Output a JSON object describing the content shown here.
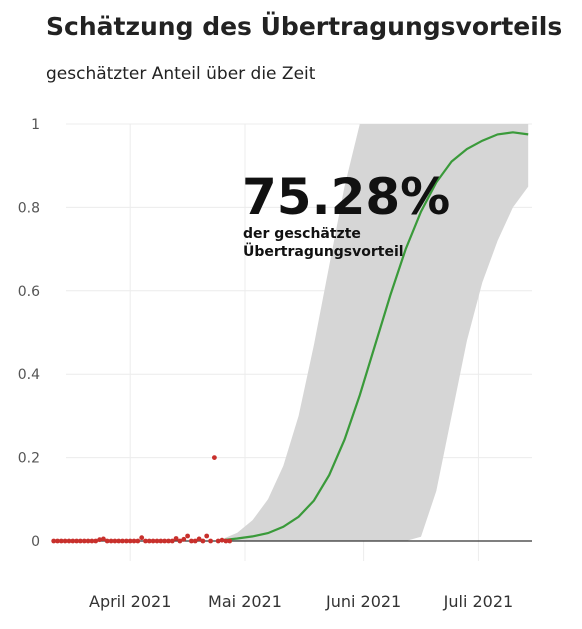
{
  "chart_data": {
    "type": "line",
    "title": "Schätzung des Übertragungsvorteils",
    "subtitle": "geschätzter Anteil über die Zeit",
    "xlabel": "",
    "ylabel": "",
    "x_range": [
      "2021-03-10",
      "2021-07-15"
    ],
    "ylim": [
      0,
      1
    ],
    "y_ticks": [
      0,
      0.2,
      0.4,
      0.6,
      0.8,
      1
    ],
    "y_tick_labels": [
      "0",
      "0.2",
      "0.4",
      "0.6",
      "0.8",
      "1"
    ],
    "x_ticks": [
      "2021-04-01",
      "2021-05-01",
      "2021-06-01",
      "2021-07-01"
    ],
    "x_tick_labels": [
      "April 2021",
      "Mai 2021",
      "Juni 2021",
      "Juli 2021"
    ],
    "grid": true,
    "annotation": {
      "value": "75.28%",
      "label_line1": "der geschätzte",
      "label_line2": "Übertragungsvorteil"
    },
    "colors": {
      "line": "#3a9a3a",
      "band": "#d6d6d6",
      "points": "#c8302c",
      "grid": "#ececec",
      "baseline": "#333333"
    },
    "estimate_line": {
      "x": [
        "2021-04-25",
        "2021-04-29",
        "2021-05-03",
        "2021-05-07",
        "2021-05-11",
        "2021-05-15",
        "2021-05-19",
        "2021-05-23",
        "2021-05-27",
        "2021-05-31",
        "2021-06-04",
        "2021-06-08",
        "2021-06-12",
        "2021-06-16",
        "2021-06-20",
        "2021-06-24",
        "2021-06-28",
        "2021-07-02",
        "2021-07-06",
        "2021-07-10",
        "2021-07-14"
      ],
      "y": [
        0.002,
        0.006,
        0.011,
        0.019,
        0.034,
        0.058,
        0.097,
        0.158,
        0.243,
        0.35,
        0.47,
        0.59,
        0.7,
        0.79,
        0.86,
        0.91,
        0.94,
        0.96,
        0.975,
        0.98,
        0.975
      ]
    },
    "confidence_band": {
      "x": [
        "2021-04-25",
        "2021-04-29",
        "2021-05-03",
        "2021-05-07",
        "2021-05-11",
        "2021-05-15",
        "2021-05-19",
        "2021-05-23",
        "2021-05-27",
        "2021-05-31",
        "2021-06-04",
        "2021-06-08",
        "2021-06-12",
        "2021-06-16",
        "2021-06-20",
        "2021-06-24",
        "2021-06-28",
        "2021-07-02",
        "2021-07-06",
        "2021-07-10",
        "2021-07-14"
      ],
      "lower": [
        0,
        0,
        0,
        0,
        0,
        0,
        0,
        0,
        0,
        0,
        0,
        0,
        0,
        0.01,
        0.12,
        0.3,
        0.48,
        0.62,
        0.72,
        0.8,
        0.85
      ],
      "upper": [
        0.004,
        0.02,
        0.05,
        0.1,
        0.18,
        0.3,
        0.47,
        0.66,
        0.85,
        1,
        1,
        1,
        1,
        1,
        1,
        1,
        1,
        1,
        1,
        1,
        1
      ]
    },
    "observations": {
      "x": [
        "2021-03-12",
        "2021-03-13",
        "2021-03-14",
        "2021-03-15",
        "2021-03-16",
        "2021-03-17",
        "2021-03-18",
        "2021-03-19",
        "2021-03-20",
        "2021-03-21",
        "2021-03-22",
        "2021-03-23",
        "2021-03-24",
        "2021-03-25",
        "2021-03-26",
        "2021-03-27",
        "2021-03-28",
        "2021-03-29",
        "2021-03-30",
        "2021-03-31",
        "2021-04-01",
        "2021-04-02",
        "2021-04-03",
        "2021-04-04",
        "2021-04-05",
        "2021-04-06",
        "2021-04-07",
        "2021-04-08",
        "2021-04-09",
        "2021-04-10",
        "2021-04-11",
        "2021-04-12",
        "2021-04-13",
        "2021-04-14",
        "2021-04-15",
        "2021-04-16",
        "2021-04-17",
        "2021-04-18",
        "2021-04-19",
        "2021-04-20",
        "2021-04-21",
        "2021-04-22",
        "2021-04-23",
        "2021-04-24",
        "2021-04-25",
        "2021-04-26",
        "2021-04-27"
      ],
      "y": [
        0,
        0,
        0,
        0,
        0,
        0,
        0,
        0,
        0,
        0,
        0,
        0,
        0.003,
        0.005,
        0,
        0,
        0,
        0,
        0,
        0,
        0,
        0,
        0,
        0.008,
        0,
        0,
        0,
        0,
        0,
        0,
        0,
        0,
        0.006,
        0,
        0.004,
        0.012,
        0,
        0,
        0.005,
        0,
        0.012,
        0,
        0.2,
        0,
        0.002,
        0,
        0
      ]
    }
  }
}
